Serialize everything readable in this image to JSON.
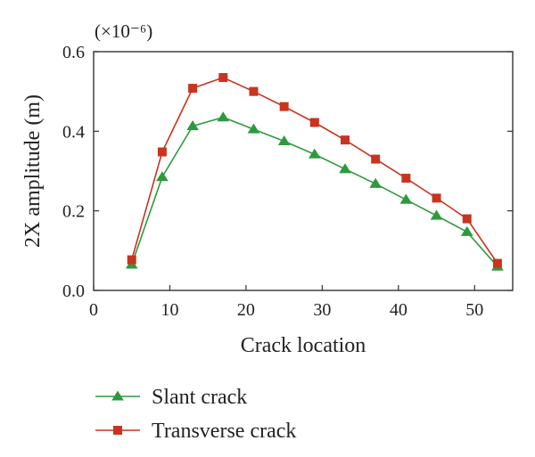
{
  "chart_data": {
    "type": "line",
    "xlabel": "Crack location",
    "ylabel": "2X amplitude (m)",
    "y_multiplier": "(×10⁻⁶)",
    "xlim": [
      0,
      55
    ],
    "ylim": [
      0,
      0.6
    ],
    "xticks": [
      "0",
      "10",
      "20",
      "30",
      "40",
      "50"
    ],
    "xtick_values": [
      0,
      10,
      20,
      30,
      40,
      50
    ],
    "yticks": [
      "0.0",
      "0.2",
      "0.4",
      "0.6"
    ],
    "ytick_values": [
      0,
      0.2,
      0.4,
      0.6
    ],
    "grid": false,
    "legend_position": "bottom",
    "x": [
      5,
      9,
      13,
      17,
      21,
      25,
      29,
      33,
      37,
      41,
      45,
      49,
      53
    ],
    "series": [
      {
        "name": "Slant crack",
        "marker": "triangle",
        "color": "#2e9a3e",
        "values": [
          0.065,
          0.285,
          0.413,
          0.435,
          0.405,
          0.375,
          0.342,
          0.305,
          0.268,
          0.228,
          0.188,
          0.147,
          0.06
        ]
      },
      {
        "name": "Transverse crack",
        "marker": "square",
        "color": "#c8341f",
        "values": [
          0.077,
          0.348,
          0.508,
          0.535,
          0.5,
          0.462,
          0.422,
          0.378,
          0.33,
          0.282,
          0.232,
          0.18,
          0.068
        ]
      }
    ]
  }
}
